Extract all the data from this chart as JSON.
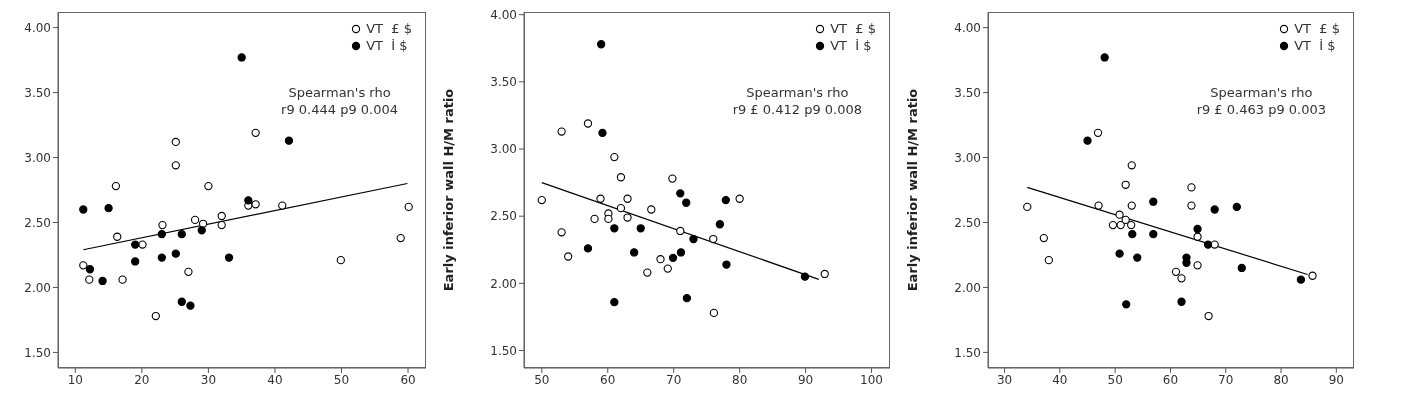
{
  "chart_data": [
    {
      "type": "scatter",
      "xlim": [
        7.4,
        62.7
      ],
      "xticks": [
        10,
        20,
        30,
        40,
        50,
        60
      ],
      "ylim": [
        1.38,
        4.12
      ],
      "yticks": [
        {
          "value": 1.5,
          "label": "1.50"
        },
        {
          "value": 2,
          "label": "2.00"
        },
        {
          "value": 2.5,
          "label": "2.50"
        },
        {
          "value": 3,
          "label": "3.00"
        },
        {
          "value": 3.5,
          "label": "3.50"
        },
        {
          "value": 4,
          "label": "4.00"
        }
      ],
      "marker": "circle",
      "legend": "top right",
      "annotations": [
        "Spearman's rho",
        "r9 0.444 p9 0.004"
      ],
      "series": [
        {
          "name": "VT  £ $",
          "color": "#ffffff",
          "x": [
            11.2,
            12.1,
            16.1,
            16.3,
            17.1,
            20.1,
            22.1,
            23.1,
            25.1,
            25.1,
            27.0,
            28.0,
            29.2,
            30.0,
            32.0,
            32.0,
            36.0,
            37.1,
            37.1,
            41.1,
            49.9,
            58.9,
            60.1
          ],
          "values": [
            2.17,
            2.06,
            2.78,
            2.39,
            2.06,
            2.33,
            1.78,
            2.48,
            3.12,
            2.94,
            2.12,
            2.52,
            2.49,
            2.78,
            2.55,
            2.48,
            2.63,
            2.64,
            3.19,
            2.63,
            2.21,
            2.38,
            2.62
          ]
        },
        {
          "name": "VT  İ $",
          "color": "#000000",
          "x": [
            11.2,
            12.2,
            14.1,
            15.0,
            19.0,
            19.0,
            23.0,
            23.0,
            25.1,
            26.0,
            26.0,
            27.3,
            29.0,
            33.1,
            36.0,
            35.0,
            42.1
          ],
          "values": [
            2.6,
            2.14,
            2.05,
            2.61,
            2.33,
            2.2,
            2.41,
            2.23,
            2.26,
            2.41,
            1.89,
            1.86,
            2.44,
            2.23,
            2.67,
            3.77,
            3.13
          ]
        },
        {
          "type": "line",
          "marker": "none",
          "color": "#000000",
          "x": [
            11.2,
            59.9
          ],
          "values": [
            2.29,
            2.8
          ]
        }
      ]
    },
    {
      "type": "scatter",
      "ylabel": "Early inferior wall H/M ratio",
      "xlim": [
        47.3,
        102.8
      ],
      "xticks": [
        50,
        60,
        70,
        80,
        90,
        100
      ],
      "ylim": [
        1.37,
        4.02
      ],
      "yticks": [
        {
          "value": 1.5,
          "label": "1.50"
        },
        {
          "value": 2,
          "label": "2.00"
        },
        {
          "value": 2.5,
          "label": "2.50"
        },
        {
          "value": 3,
          "label": "3.00"
        },
        {
          "value": 3.5,
          "label": "3.50"
        },
        {
          "value": 4,
          "label": "4.00"
        }
      ],
      "marker": "circle",
      "legend": "top right",
      "annotations": [
        "Spearman's rho",
        "r9 £ 0.412 p9 0.008"
      ],
      "series": [
        {
          "name": "VT  £ $",
          "color": "#ffffff",
          "x": [
            50.0,
            53.0,
            53.0,
            54.0,
            57.0,
            58.0,
            58.9,
            60.1,
            60.1,
            61.0,
            62.0,
            62.0,
            63.0,
            63.0,
            66.0,
            66.6,
            68.0,
            69.1,
            69.8,
            71.0,
            76.0,
            76.1,
            80.0,
            92.9
          ],
          "values": [
            2.62,
            2.38,
            3.13,
            2.2,
            3.19,
            2.48,
            2.63,
            2.52,
            2.48,
            2.94,
            2.79,
            2.56,
            2.49,
            2.63,
            2.08,
            2.55,
            2.18,
            2.11,
            2.78,
            2.39,
            2.33,
            1.78,
            2.63,
            2.07
          ]
        },
        {
          "name": "VT  İ $",
          "color": "#000000",
          "x": [
            59.0,
            59.2,
            57.0,
            61.0,
            61.0,
            64.0,
            65.0,
            69.9,
            71.1,
            71.0,
            71.9,
            73.0,
            72.0,
            77.0,
            77.9,
            78.0,
            89.9
          ],
          "values": [
            3.78,
            3.12,
            2.26,
            2.41,
            1.86,
            2.23,
            2.41,
            2.19,
            2.23,
            2.67,
            2.6,
            2.33,
            1.89,
            2.44,
            2.62,
            2.14,
            2.05
          ]
        },
        {
          "type": "line",
          "marker": "none",
          "color": "#000000",
          "x": [
            50.0,
            92.0
          ],
          "values": [
            2.75,
            2.03
          ]
        }
      ]
    },
    {
      "type": "scatter",
      "ylabel": "Early inferior wall H/M ratio",
      "xlim": [
        27.0,
        93.2
      ],
      "xticks": [
        30,
        40,
        50,
        60,
        70,
        80,
        90
      ],
      "ylim": [
        1.38,
        4.12
      ],
      "yticks": [
        {
          "value": 1.5,
          "label": "1.50"
        },
        {
          "value": 2,
          "label": "2.00"
        },
        {
          "value": 2.5,
          "label": "2.50"
        },
        {
          "value": 3,
          "label": "3.00"
        },
        {
          "value": 3.5,
          "label": "3.50"
        },
        {
          "value": 4,
          "label": "4.00"
        }
      ],
      "marker": "circle",
      "legend": "top right",
      "annotations": [
        "Spearman's rho",
        "r9 £ 0.463 p9 0.003"
      ],
      "series": [
        {
          "name": "VT  £ $",
          "color": "#ffffff",
          "x": [
            34.1,
            37.1,
            38.0,
            46.9,
            47.0,
            49.6,
            50.8,
            51.0,
            51.9,
            51.9,
            52.9,
            53.0,
            53.0,
            61.0,
            62.0,
            63.8,
            63.8,
            64.9,
            64.9,
            66.9,
            68.0,
            85.7
          ],
          "values": [
            2.62,
            2.38,
            2.21,
            3.19,
            2.63,
            2.48,
            2.56,
            2.48,
            2.79,
            2.52,
            2.48,
            2.94,
            2.63,
            2.12,
            2.07,
            2.77,
            2.63,
            2.39,
            2.17,
            1.78,
            2.33,
            2.09
          ]
        },
        {
          "name": "VT  İ $",
          "color": "#000000",
          "x": [
            48.1,
            45.0,
            50.8,
            53.1,
            54.0,
            52.0,
            56.9,
            56.9,
            62.9,
            62.9,
            62.0,
            64.9,
            66.8,
            68.0,
            72.0,
            72.9,
            83.6
          ],
          "values": [
            3.77,
            3.13,
            2.26,
            2.41,
            2.23,
            1.87,
            2.66,
            2.41,
            2.23,
            2.19,
            1.89,
            2.45,
            2.33,
            2.6,
            2.62,
            2.15,
            2.06
          ]
        },
        {
          "type": "line",
          "marker": "none",
          "color": "#000000",
          "x": [
            34.1,
            84.8
          ],
          "values": [
            2.77,
            2.1
          ]
        }
      ]
    }
  ]
}
